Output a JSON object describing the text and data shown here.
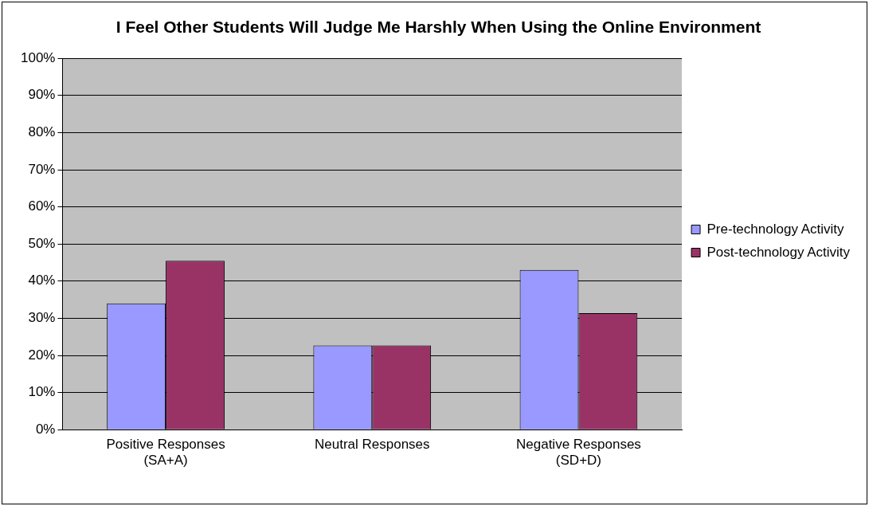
{
  "chart_data": {
    "type": "bar",
    "title": "I Feel Other Students Will Judge Me Harshly When Using the Online Environment",
    "categories": [
      [
        "Positive Responses",
        "(SA+A)"
      ],
      "Neutral Responses",
      [
        "Negative Responses",
        "(SD+D)"
      ]
    ],
    "series": [
      {
        "name": "Pre-technology Activity",
        "color": "#9999ff",
        "values": [
          34,
          22.7,
          43
        ]
      },
      {
        "name": "Post-technology Activity",
        "color": "#993366",
        "values": [
          45.5,
          22.7,
          31.4
        ]
      }
    ],
    "ylim": [
      0,
      100
    ],
    "yticks": [
      {
        "value": 0,
        "label": "0%"
      },
      {
        "value": 10,
        "label": "10%"
      },
      {
        "value": 20,
        "label": "20%"
      },
      {
        "value": 30,
        "label": "30%"
      },
      {
        "value": 40,
        "label": "40%"
      },
      {
        "value": 50,
        "label": "50%"
      },
      {
        "value": 60,
        "label": "60%"
      },
      {
        "value": 70,
        "label": "70%"
      },
      {
        "value": 80,
        "label": "80%"
      },
      {
        "value": 90,
        "label": "90%"
      },
      {
        "value": 100,
        "label": "100%"
      }
    ],
    "grid": "y",
    "legend": "right"
  }
}
